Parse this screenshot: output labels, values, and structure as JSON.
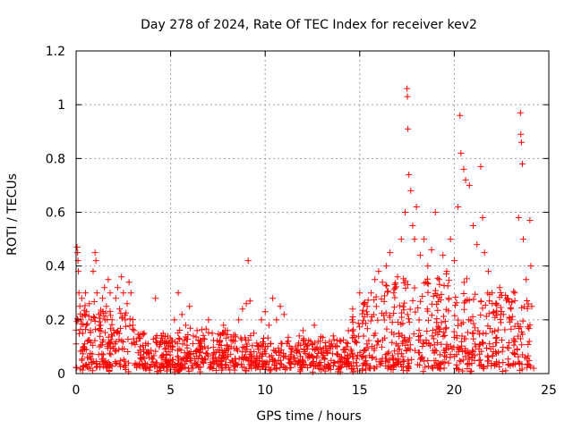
{
  "chart_data": {
    "type": "scatter",
    "title": "Day 278 of 2024, Rate Of TEC Index for receiver kev2",
    "xlabel": "GPS time / hours",
    "ylabel": "ROTI / TECUs",
    "xlim": [
      0,
      25
    ],
    "ylim": [
      0,
      1.2
    ],
    "x_ticks": [
      0,
      5,
      10,
      15,
      20,
      25
    ],
    "x_tick_labels": [
      "0",
      "5",
      "10",
      "15",
      "20",
      "25"
    ],
    "y_ticks": [
      0,
      0.2,
      0.4,
      0.6,
      0.8,
      1,
      1.2
    ],
    "y_tick_labels": [
      "0",
      "0.2",
      "0.4",
      "0.6",
      "0.8",
      "1",
      "1.2"
    ],
    "grid": true,
    "marker": "plus",
    "color": "#ff0000",
    "series": [
      {
        "name": "ROTI",
        "points": [
          [
            0.05,
            0.47
          ],
          [
            0.08,
            0.45
          ],
          [
            0.1,
            0.42
          ],
          [
            0.12,
            0.38
          ],
          [
            0.15,
            0.3
          ],
          [
            0.2,
            0.25
          ],
          [
            0.25,
            0.2
          ],
          [
            0.3,
            0.28
          ],
          [
            0.35,
            0.15
          ],
          [
            0.4,
            0.1
          ],
          [
            0.45,
            0.22
          ],
          [
            0.5,
            0.3
          ],
          [
            0.55,
            0.18
          ],
          [
            0.6,
            0.12
          ],
          [
            0.7,
            0.26
          ],
          [
            0.8,
            0.2
          ],
          [
            0.9,
            0.38
          ],
          [
            1.0,
            0.45
          ],
          [
            1.05,
            0.42
          ],
          [
            1.1,
            0.3
          ],
          [
            1.2,
            0.22
          ],
          [
            1.3,
            0.18
          ],
          [
            1.4,
            0.28
          ],
          [
            1.5,
            0.32
          ],
          [
            1.6,
            0.25
          ],
          [
            1.7,
            0.35
          ],
          [
            1.8,
            0.3
          ],
          [
            1.9,
            0.2
          ],
          [
            2.0,
            0.15
          ],
          [
            2.1,
            0.28
          ],
          [
            2.2,
            0.32
          ],
          [
            2.3,
            0.24
          ],
          [
            2.4,
            0.36
          ],
          [
            2.5,
            0.3
          ],
          [
            2.6,
            0.2
          ],
          [
            2.7,
            0.26
          ],
          [
            2.8,
            0.34
          ],
          [
            2.9,
            0.3
          ],
          [
            3.0,
            0.18
          ],
          [
            3.2,
            0.12
          ],
          [
            3.4,
            0.1
          ],
          [
            3.6,
            0.15
          ],
          [
            3.8,
            0.08
          ],
          [
            4.0,
            0.06
          ],
          [
            4.2,
            0.28
          ],
          [
            4.4,
            0.1
          ],
          [
            4.6,
            0.06
          ],
          [
            4.8,
            0.12
          ],
          [
            5.0,
            0.1
          ],
          [
            5.2,
            0.2
          ],
          [
            5.4,
            0.3
          ],
          [
            5.6,
            0.22
          ],
          [
            5.8,
            0.18
          ],
          [
            6.0,
            0.25
          ],
          [
            6.2,
            0.14
          ],
          [
            6.4,
            0.16
          ],
          [
            6.6,
            0.12
          ],
          [
            6.8,
            0.1
          ],
          [
            7.0,
            0.2
          ],
          [
            7.2,
            0.15
          ],
          [
            7.4,
            0.08
          ],
          [
            7.6,
            0.12
          ],
          [
            7.8,
            0.18
          ],
          [
            8.0,
            0.16
          ],
          [
            8.2,
            0.1
          ],
          [
            8.4,
            0.12
          ],
          [
            8.6,
            0.2
          ],
          [
            8.8,
            0.24
          ],
          [
            9.0,
            0.26
          ],
          [
            9.1,
            0.42
          ],
          [
            9.2,
            0.27
          ],
          [
            9.4,
            0.15
          ],
          [
            9.6,
            0.1
          ],
          [
            9.8,
            0.2
          ],
          [
            10.0,
            0.23
          ],
          [
            10.2,
            0.18
          ],
          [
            10.4,
            0.28
          ],
          [
            10.6,
            0.2
          ],
          [
            10.8,
            0.25
          ],
          [
            11.0,
            0.22
          ],
          [
            11.2,
            0.12
          ],
          [
            11.4,
            0.08
          ],
          [
            11.6,
            0.1
          ],
          [
            11.8,
            0.14
          ],
          [
            12.0,
            0.16
          ],
          [
            12.2,
            0.1
          ],
          [
            12.4,
            0.12
          ],
          [
            12.6,
            0.18
          ],
          [
            12.8,
            0.12
          ],
          [
            13.0,
            0.08
          ],
          [
            13.2,
            0.1
          ],
          [
            13.4,
            0.12
          ],
          [
            13.6,
            0.14
          ],
          [
            13.8,
            0.1
          ],
          [
            14.0,
            0.12
          ],
          [
            14.2,
            0.08
          ],
          [
            14.4,
            0.16
          ],
          [
            14.6,
            0.2
          ],
          [
            14.8,
            0.12
          ],
          [
            15.0,
            0.3
          ],
          [
            15.2,
            0.26
          ],
          [
            15.4,
            0.22
          ],
          [
            15.6,
            0.3
          ],
          [
            15.8,
            0.35
          ],
          [
            16.0,
            0.38
          ],
          [
            16.2,
            0.34
          ],
          [
            16.4,
            0.4
          ],
          [
            16.6,
            0.45
          ],
          [
            16.8,
            0.3
          ],
          [
            17.0,
            0.36
          ],
          [
            17.2,
            0.5
          ],
          [
            17.4,
            0.6
          ],
          [
            17.5,
            1.06
          ],
          [
            17.52,
            1.03
          ],
          [
            17.55,
            0.91
          ],
          [
            17.6,
            0.74
          ],
          [
            17.7,
            0.68
          ],
          [
            17.8,
            0.55
          ],
          [
            17.9,
            0.5
          ],
          [
            18.0,
            0.62
          ],
          [
            18.2,
            0.44
          ],
          [
            18.4,
            0.5
          ],
          [
            18.6,
            0.4
          ],
          [
            18.8,
            0.46
          ],
          [
            19.0,
            0.6
          ],
          [
            19.2,
            0.35
          ],
          [
            19.4,
            0.44
          ],
          [
            19.6,
            0.38
          ],
          [
            19.8,
            0.5
          ],
          [
            20.0,
            0.42
          ],
          [
            20.2,
            0.62
          ],
          [
            20.3,
            0.96
          ],
          [
            20.35,
            0.82
          ],
          [
            20.5,
            0.76
          ],
          [
            20.6,
            0.72
          ],
          [
            20.8,
            0.7
          ],
          [
            21.0,
            0.55
          ],
          [
            21.2,
            0.48
          ],
          [
            21.4,
            0.77
          ],
          [
            21.5,
            0.58
          ],
          [
            21.6,
            0.45
          ],
          [
            21.8,
            0.38
          ],
          [
            22.0,
            0.3
          ],
          [
            22.2,
            0.26
          ],
          [
            22.4,
            0.32
          ],
          [
            22.6,
            0.22
          ],
          [
            22.8,
            0.28
          ],
          [
            23.0,
            0.24
          ],
          [
            23.2,
            0.3
          ],
          [
            23.4,
            0.58
          ],
          [
            23.5,
            0.97
          ],
          [
            23.52,
            0.89
          ],
          [
            23.55,
            0.86
          ],
          [
            23.6,
            0.78
          ],
          [
            23.65,
            0.5
          ],
          [
            23.8,
            0.35
          ],
          [
            24.0,
            0.57
          ],
          [
            24.05,
            0.4
          ],
          [
            24.1,
            0.25
          ],
          [
            24.2,
            0.02
          ]
        ]
      }
    ]
  }
}
